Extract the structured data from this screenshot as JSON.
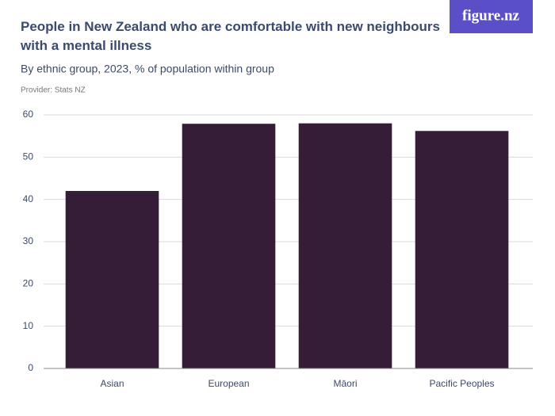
{
  "chart_data": {
    "type": "bar",
    "title": "People in New Zealand who are comfortable with new neighbours with a mental illness",
    "subtitle": "By ethnic group, 2023, % of population within group",
    "source": "Provider: Stats NZ",
    "brand": "figure.nz",
    "categories": [
      "Asian",
      "European",
      "Māori",
      "Pacific Peoples"
    ],
    "values": [
      42,
      57.9,
      58,
      56.2
    ],
    "color": "#351d37",
    "ylim": [
      0,
      60
    ],
    "yticks": [
      0,
      10,
      20,
      30,
      40,
      50,
      60
    ],
    "grid": true
  }
}
